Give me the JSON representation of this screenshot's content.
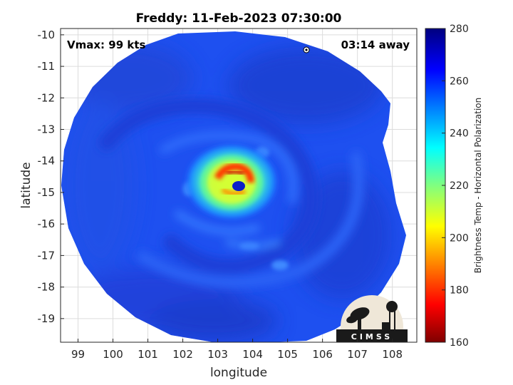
{
  "chart_data": {
    "type": "heatmap",
    "title": "Freddy: 11-Feb-2023 07:30:00",
    "xlabel": "longitude",
    "ylabel": "latitude",
    "xlim": [
      98.5,
      108.7
    ],
    "ylim": [
      -19.75,
      -9.8
    ],
    "xticks": [
      "99",
      "100",
      "101",
      "102",
      "103",
      "104",
      "105",
      "106",
      "107",
      "108"
    ],
    "yticks": [
      "-10",
      "-11",
      "-12",
      "-13",
      "-14",
      "-15",
      "-16",
      "-17",
      "-18",
      "-19"
    ],
    "grid": true,
    "annotations": {
      "vmax": "Vmax: 99 kts",
      "time_away": "03:14 away"
    },
    "storm_center": {
      "lon": 103.7,
      "lat": -14.9
    },
    "colorbar": {
      "label": "Brightness Temp - Horizontal Polarization",
      "range": [
        160,
        280
      ],
      "ticks": [
        "280",
        "260",
        "240",
        "220",
        "200",
        "180",
        "160"
      ],
      "colormap": "jet"
    },
    "field_description_values": {
      "background_K": 262,
      "eye_K": 264,
      "eyewall_min_K": 185,
      "inner_ring_K": 220
    },
    "logo": {
      "text": "CIMSS"
    }
  }
}
